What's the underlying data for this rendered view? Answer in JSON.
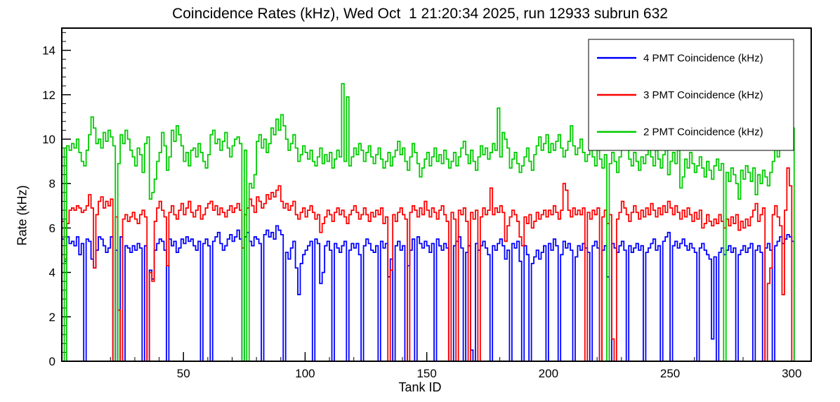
{
  "chart_data": {
    "type": "step-histogram",
    "title": "Coincidence Rates (kHz), Wed Oct  1 21:20:34 2025, run 12933 subrun 632",
    "xlabel": "Tank ID",
    "ylabel": "Rate (kHz)",
    "xlim": [
      0,
      308
    ],
    "ylim": [
      0,
      15
    ],
    "x_ticks": [
      50,
      100,
      150,
      200,
      250,
      300
    ],
    "y_ticks": [
      0,
      2,
      4,
      6,
      8,
      10,
      12,
      14
    ],
    "x_minor_step": 10,
    "y_minor_step": 0.4,
    "grid": false,
    "legend_position": "top-right",
    "frame_color": "#000000",
    "background_color": "#ffffff",
    "series": [
      {
        "name": "4 PMT Coincidence (kHz)",
        "color": "#0000ff",
        "values": [
          5.5,
          4.5,
          5.6,
          5.3,
          5.4,
          5.2,
          5.6,
          4.8,
          5.3,
          0,
          5.5,
          5.4,
          4.6,
          4.2,
          5.0,
          5.6,
          5.5,
          5.2,
          4.9,
          5.1,
          5.6,
          0,
          5.0,
          0,
          5.6,
          0,
          5.2,
          5.1,
          4.9,
          5.2,
          5.0,
          5.3,
          5.1,
          0,
          5.2,
          0,
          4.1,
          3.7,
          5.0,
          5.3,
          5.5,
          5.4,
          5.0,
          0,
          5.5,
          5.2,
          5.4,
          4.9,
          5.1,
          5.5,
          5.3,
          5.6,
          5.4,
          5.5,
          5.2,
          5.0,
          5.4,
          0,
          5.3,
          5.5,
          5.2,
          0,
          5.4,
          5.6,
          5.8,
          5.3,
          5.0,
          5.2,
          5.5,
          5.7,
          5.4,
          5.6,
          5.9,
          5.5,
          0,
          5.6,
          5.8,
          5.4,
          5.2,
          5.6,
          5.5,
          5.3,
          0,
          5.7,
          5.9,
          5.6,
          5.8,
          5.5,
          6.1,
          5.9,
          5.7,
          0,
          4.9,
          4.6,
          5.1,
          5.4,
          4.2,
          3.0,
          4.4,
          4.8,
          5.0,
          5.2,
          5.4,
          0,
          5.5,
          5.3,
          3.5,
          4.0,
          5.2,
          5.4,
          5.0,
          0,
          5.3,
          5.1,
          4.9,
          5.2,
          5.4,
          0,
          5.0,
          5.3,
          5.1,
          5.3,
          4.8,
          0,
          5.2,
          5.5,
          5.3,
          5.0,
          4.9,
          5.2,
          0,
          5.4,
          5.1,
          5.3,
          3.8,
          4.6,
          0,
          5.2,
          5.4,
          5.0,
          5.2,
          0,
          4.3,
          5.0,
          5.5,
          0,
          5.6,
          5.3,
          5.1,
          5.4,
          5.2,
          4.9,
          5.3,
          0,
          5.5,
          5.2,
          5.0,
          5.3,
          5.1,
          0,
          0,
          5.2,
          5.4,
          5.6,
          5.1,
          0,
          4.9,
          5.2,
          0.5,
          0,
          5.3,
          5.0,
          5.2,
          5.4,
          5.1,
          4.8,
          0,
          5.2,
          5.0,
          5.3,
          5.5,
          5.2,
          4.6,
          5.0,
          0,
          5.3,
          5.1,
          5.4,
          4.5,
          0,
          5.2,
          4.8,
          0,
          4.4,
          4.7,
          5.0,
          4.6,
          4.9,
          5.2,
          0,
          5.3,
          5.0,
          5.5,
          5.2,
          0,
          4.8,
          5.4,
          5.1,
          5.3,
          5.0,
          0,
          4.7,
          5.2,
          5.0,
          5.3,
          5.1,
          4.9,
          0,
          5.2,
          5.4,
          5.1,
          0,
          5.0,
          5.2,
          3.8,
          0,
          5.3,
          5.1,
          4.9,
          5.2,
          5.4,
          5.0,
          0,
          5.2,
          4.9,
          5.1,
          5.3,
          5.0,
          5.2,
          0,
          4.9,
          5.1,
          5.3,
          5.5,
          5.0,
          5.2,
          0,
          5.4,
          5.6,
          5.8,
          0,
          5.2,
          5.4,
          5.1,
          5.3,
          5.5,
          5.2,
          5.0,
          5.3,
          5.1,
          4.9,
          0,
          5.1,
          5.3,
          5.0,
          4.8,
          4.6,
          1.0,
          4.7,
          0,
          4.9,
          5.1,
          4.8,
          5.0,
          5.2,
          4.9,
          5.1,
          0,
          4.8,
          5.0,
          5.2,
          4.9,
          5.1,
          5.3,
          0,
          5.0,
          5.2,
          4.9,
          0,
          5.1,
          5.3,
          5.0,
          0,
          5.2,
          5.4,
          5.6,
          5.3,
          5.5,
          5.7,
          5.6,
          5.4,
          0,
          0,
          0
        ]
      },
      {
        "name": "3 PMT Coincidence (kHz)",
        "color": "#ff0000",
        "values": [
          6.3,
          4.6,
          6.2,
          6.8,
          6.9,
          6.8,
          7.0,
          6.9,
          6.7,
          6.8,
          7.0,
          7.5,
          6.9,
          4.2,
          6.6,
          7.2,
          7.4,
          6.9,
          7.2,
          7.0,
          7.3,
          0,
          6.5,
          2.3,
          0,
          6.4,
          6.6,
          6.3,
          6.5,
          6.7,
          6.4,
          6.2,
          6.6,
          6.8,
          6.5,
          0,
          4.0,
          3.6,
          6.3,
          6.9,
          7.2,
          6.8,
          6.5,
          4.3,
          6.7,
          7.0,
          6.6,
          6.4,
          6.8,
          7.1,
          6.6,
          6.9,
          7.2,
          6.7,
          6.5,
          6.8,
          7.0,
          6.4,
          6.6,
          6.9,
          7.1,
          7.2,
          6.8,
          7.0,
          6.6,
          6.9,
          6.7,
          6.5,
          6.8,
          7.0,
          6.7,
          6.9,
          7.1,
          6.8,
          5.1,
          6.6,
          6.9,
          7.3,
          7.0,
          6.7,
          7.4,
          7.2,
          6.9,
          7.1,
          7.5,
          7.3,
          7.6,
          7.4,
          7.7,
          7.9,
          7.2,
          6.9,
          7.1,
          6.8,
          7.0,
          7.2,
          6.6,
          6.4,
          6.7,
          6.9,
          6.5,
          6.8,
          7.0,
          6.7,
          6.4,
          6.6,
          5.8,
          6.2,
          6.5,
          6.8,
          6.6,
          6.3,
          6.7,
          6.9,
          6.6,
          6.8,
          6.5,
          6.2,
          6.6,
          6.8,
          7.0,
          6.7,
          6.4,
          6.6,
          6.9,
          6.6,
          6.3,
          6.7,
          6.5,
          6.8,
          6.6,
          6.9,
          6.2,
          6.5,
          0,
          4.1,
          6.6,
          6.3,
          6.7,
          6.9,
          6.6,
          6.4,
          0,
          6.7,
          7.0,
          6.8,
          6.5,
          6.9,
          6.6,
          7.2,
          6.8,
          6.5,
          6.9,
          6.7,
          6.4,
          6.8,
          7.0,
          6.6,
          6.3,
          0,
          6.7,
          6.4,
          0,
          6.8,
          6.6,
          6.9,
          6.3,
          0,
          6.7,
          6.4,
          6.8,
          0,
          6.5,
          6.9,
          6.6,
          6.8,
          7.8,
          6.6,
          6.9,
          6.7,
          7.0,
          6.7,
          5.4,
          6.1,
          6.5,
          6.8,
          6.6,
          6.3,
          5.6,
          5.2,
          6.5,
          6.2,
          6.6,
          6.0,
          6.3,
          6.7,
          6.4,
          6.6,
          6.8,
          6.5,
          6.8,
          6.6,
          7.0,
          6.7,
          6.4,
          6.8,
          8.0,
          7.7,
          6.8,
          6.5,
          6.9,
          6.6,
          6.8,
          6.6,
          6.9,
          0,
          6.7,
          6.4,
          6.8,
          6.6,
          6.9,
          0,
          6.5,
          6.8,
          6.2,
          6.6,
          1.0,
          0,
          6.4,
          6.7,
          7.2,
          6.9,
          6.6,
          6.3,
          6.7,
          7.0,
          6.7,
          6.4,
          6.8,
          6.5,
          6.9,
          6.6,
          7.1,
          6.8,
          6.5,
          6.9,
          6.6,
          7.0,
          6.7,
          7.2,
          6.9,
          6.6,
          7.0,
          6.7,
          6.4,
          6.8,
          6.5,
          6.9,
          6.6,
          6.3,
          6.7,
          6.4,
          6.8,
          6.0,
          6.2,
          6.6,
          6.3,
          6.1,
          6.4,
          6.2,
          6.6,
          6.3,
          6.0,
          6.4,
          6.1,
          6.5,
          6.2,
          6.6,
          5.9,
          6.3,
          6.0,
          6.4,
          6.1,
          6.5,
          6.8,
          7.1,
          6.3,
          6.6,
          6.9,
          0,
          3.5,
          4.2,
          6.6,
          7.0,
          6.5,
          6.1,
          3.0,
          6.8,
          8.7,
          7.9,
          0,
          0,
          0,
          0
        ]
      },
      {
        "name": "2 PMT Coincidence (kHz)",
        "color": "#00cc00",
        "values": [
          9.6,
          0,
          9.7,
          9.5,
          9.8,
          9.6,
          10.0,
          9.4,
          9.0,
          8.8,
          9.5,
          10.2,
          11.0,
          10.5,
          9.8,
          10.0,
          9.6,
          10.3,
          9.9,
          10.4,
          10.1,
          9.7,
          0,
          8.9,
          10.2,
          9.8,
          10.4,
          10.0,
          9.5,
          9.2,
          8.8,
          9.6,
          9.3,
          8.5,
          9.8,
          10.1,
          7.3,
          7.6,
          8.2,
          9.0,
          9.4,
          10.3,
          9.7,
          8.6,
          9.2,
          10.4,
          9.9,
          10.6,
          10.2,
          9.7,
          9.0,
          9.4,
          8.8,
          9.5,
          9.6,
          9.2,
          9.8,
          9.4,
          9.0,
          8.7,
          9.3,
          10.2,
          10.4,
          9.8,
          10.0,
          9.5,
          9.9,
          10.3,
          9.6,
          9.2,
          9.7,
          10.0,
          10.1,
          9.8,
          0,
          9.5,
          0,
          8.0,
          7.8,
          8.4,
          9.9,
          10.2,
          9.6,
          10.0,
          9.4,
          9.8,
          10.5,
          10.2,
          10.9,
          10.4,
          11.1,
          10.6,
          10.0,
          9.5,
          9.8,
          10.2,
          9.6,
          9.0,
          9.3,
          9.7,
          9.4,
          9.1,
          9.5,
          9.0,
          8.8,
          9.2,
          9.6,
          8.9,
          9.3,
          9.0,
          9.4,
          8.7,
          9.1,
          9.5,
          9.2,
          12.5,
          9.0,
          11.9,
          8.8,
          9.2,
          9.6,
          9.3,
          9.8,
          9.5,
          9.0,
          9.4,
          9.7,
          9.2,
          8.9,
          9.3,
          9.6,
          9.1,
          8.7,
          9.0,
          9.4,
          8.8,
          9.2,
          9.5,
          9.9,
          9.3,
          9.6,
          9.0,
          8.6,
          9.2,
          9.8,
          9.4,
          8.9,
          8.3,
          8.7,
          9.1,
          9.4,
          8.8,
          9.2,
          9.6,
          9.0,
          9.3,
          8.9,
          9.5,
          9.1,
          8.7,
          9.0,
          9.4,
          8.8,
          9.2,
          9.6,
          9.9,
          9.3,
          8.9,
          9.5,
          9.0,
          8.6,
          9.2,
          9.7,
          9.3,
          9.6,
          9.1,
          9.4,
          9.8,
          9.5,
          11.4,
          9.2,
          10.3,
          10.0,
          9.6,
          8.7,
          9.1,
          9.4,
          8.9,
          8.5,
          8.8,
          9.2,
          9.6,
          9.0,
          8.6,
          9.3,
          9.7,
          10.1,
          9.5,
          9.8,
          10.2,
          9.4,
          9.8,
          9.5,
          9.9,
          10.2,
          9.6,
          9.2,
          9.5,
          9.9,
          10.6,
          9.7,
          9.3,
          9.6,
          10.0,
          9.4,
          9.0,
          9.3,
          9.7,
          9.2,
          8.8,
          9.5,
          9.1,
          8.7,
          9.3,
          0,
          8.9,
          9.4,
          9.0,
          8.5,
          9.2,
          9.8,
          10.4,
          9.6,
          9.1,
          8.8,
          9.4,
          9.0,
          8.6,
          9.2,
          8.9,
          9.3,
          9.7,
          9.2,
          8.8,
          9.5,
          9.1,
          8.7,
          9.3,
          9.6,
          8.4,
          9.0,
          9.4,
          8.9,
          9.5,
          7.8,
          8.3,
          9.1,
          8.7,
          9.4,
          8.9,
          8.5,
          8.8,
          9.2,
          8.7,
          8.3,
          9.0,
          8.6,
          8.2,
          8.8,
          9.1,
          8.6,
          8.9,
          0,
          8.5,
          8.1,
          8.7,
          8.4,
          8.0,
          7.3,
          8.6,
          8.2,
          8.8,
          8.5,
          8.1,
          8.7,
          7.5,
          8.4,
          8.0,
          8.6,
          8.3,
          7.9,
          8.5,
          9.0,
          9.6,
          9.2,
          10.1,
          9.7,
          11.5,
          11.1,
          10.5,
          10.5,
          0,
          0,
          0
        ]
      }
    ]
  }
}
